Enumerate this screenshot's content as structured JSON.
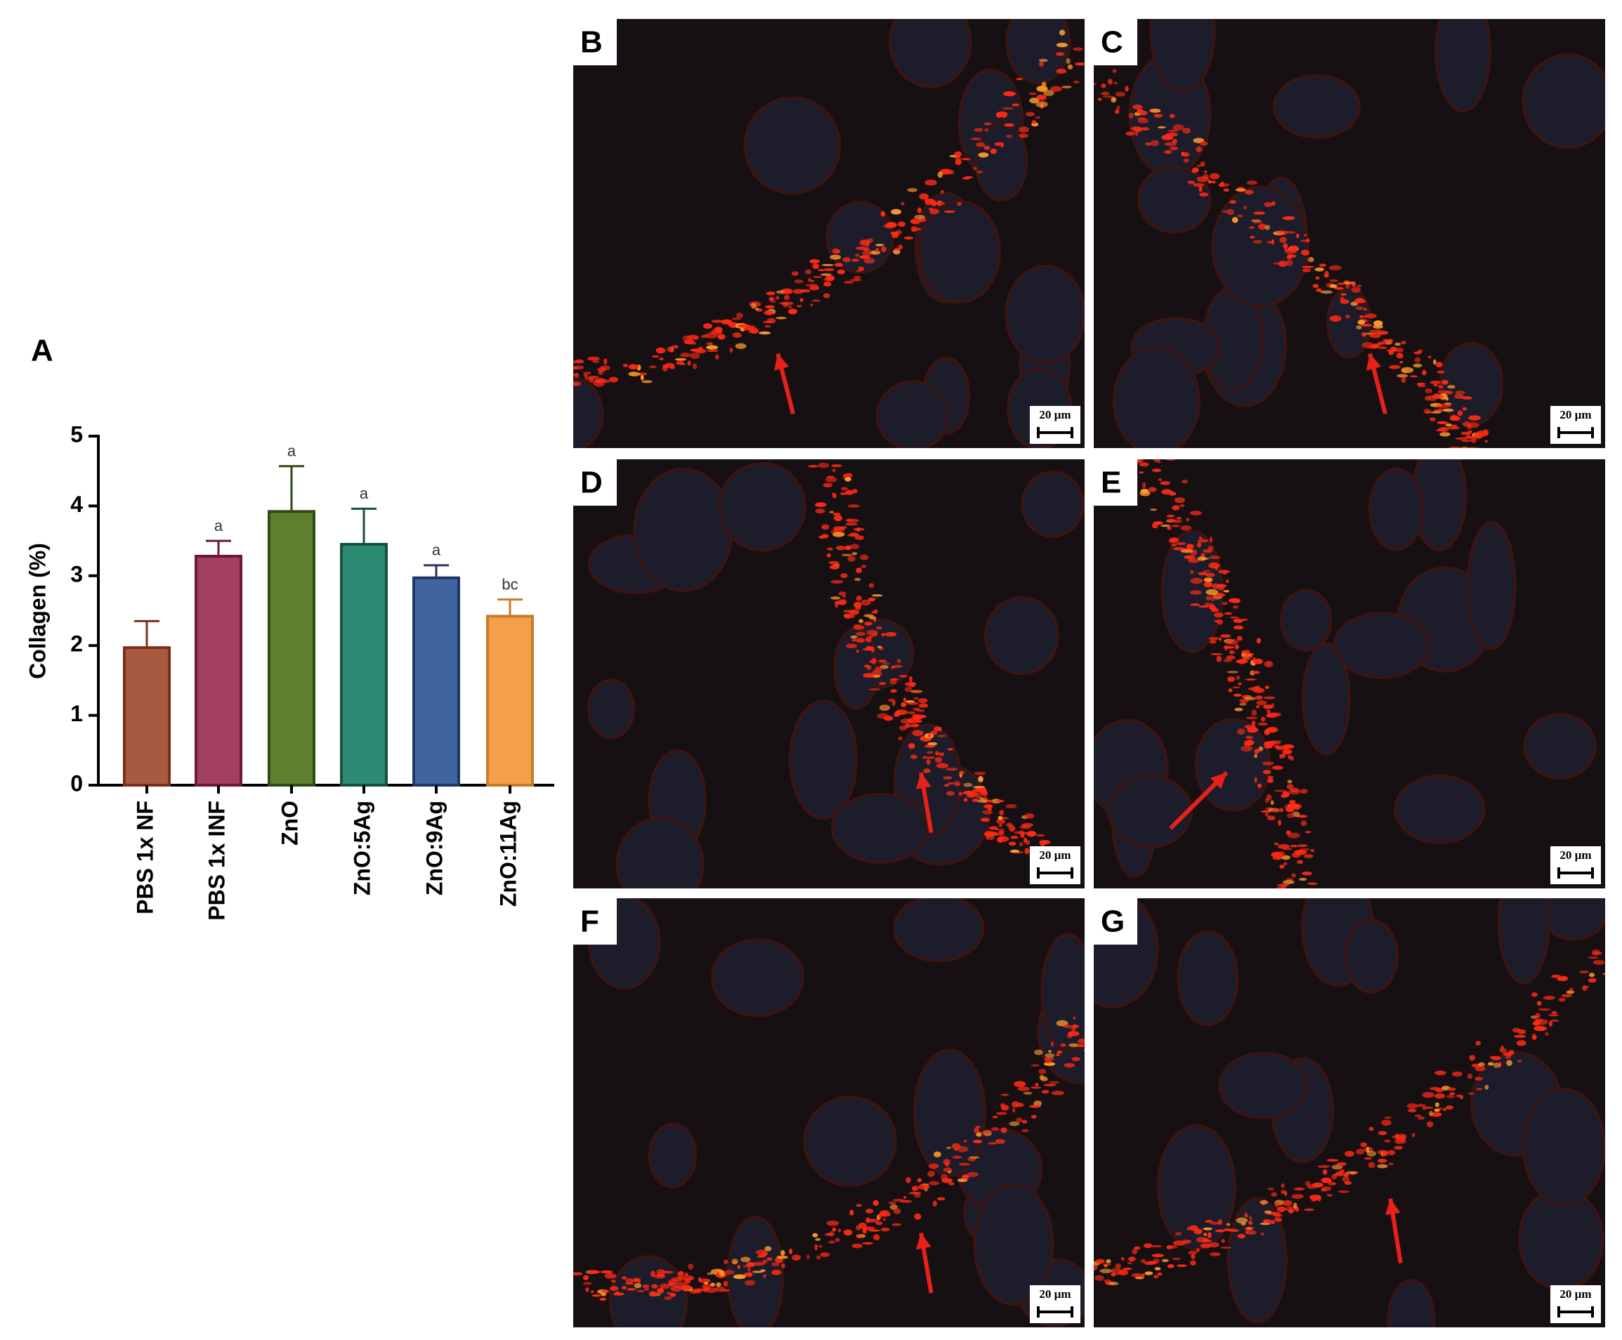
{
  "chart_data": {
    "type": "bar",
    "panel_label": "A",
    "ylabel": "Collagen (%)",
    "categories": [
      "PBS 1x NF",
      "PBS 1x INF",
      "ZnO",
      "ZnO:5Ag",
      "ZnO:9Ag",
      "ZnO:11Ag"
    ],
    "values": [
      1.97,
      3.28,
      3.92,
      3.45,
      2.97,
      2.42
    ],
    "errors": [
      0.38,
      0.22,
      0.65,
      0.51,
      0.18,
      0.24
    ],
    "significance": [
      null,
      "a",
      "a",
      "a",
      "a",
      "bc"
    ],
    "colors": [
      "#a85a40",
      "#a33f62",
      "#5f7f2e",
      "#2a8a72",
      "#3f64a0",
      "#f4a04a"
    ],
    "edge_colors": [
      "#7a2e1a",
      "#6e1838",
      "#2f4a14",
      "#17503f",
      "#1f3766",
      "#c77b2a"
    ],
    "ylim": [
      0,
      5
    ],
    "yticks": [
      0,
      1,
      2,
      3,
      4,
      5
    ]
  },
  "panels": [
    {
      "label": "B",
      "scale": "20 µm"
    },
    {
      "label": "C",
      "scale": "20 µm"
    },
    {
      "label": "D",
      "scale": "20 µm"
    },
    {
      "label": "E",
      "scale": "20 µm"
    },
    {
      "label": "F",
      "scale": "20 µm"
    },
    {
      "label": "G",
      "scale": "20 µm"
    }
  ]
}
